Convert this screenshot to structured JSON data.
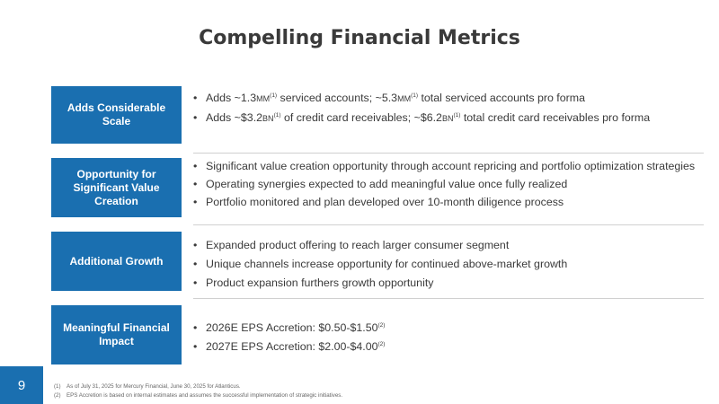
{
  "title": "Compelling Financial Metrics",
  "sections": [
    {
      "label": "Adds Considerable Scale",
      "bullets": [
        "Adds ~1.3MM(1) serviced accounts; ~5.3MM(1) total serviced accounts pro forma",
        "Adds ~$3.2BN(1) of credit card receivables; ~$6.2BN(1) total credit card receivables pro forma"
      ]
    },
    {
      "label": "Opportunity for Significant Value Creation",
      "bullets": [
        "Significant value creation opportunity through account repricing and portfolio optimization strategies",
        "Operating synergies expected to add meaningful value once fully realized",
        "Portfolio monitored and plan developed over 10-month diligence process"
      ]
    },
    {
      "label": "Additional Growth",
      "bullets": [
        "Expanded product offering to reach larger consumer segment",
        "Unique channels increase opportunity for continued above-market growth",
        "Product expansion furthers growth opportunity"
      ]
    },
    {
      "label": "Meaningful Financial Impact",
      "bullets": [
        "2026E EPS Accretion: $0.50-$1.50(2)",
        "2027E EPS Accretion: $2.00-$4.00(2)"
      ]
    }
  ],
  "page_number": "9",
  "footnotes": [
    {
      "mark": "(1)",
      "text": "As of July 31, 2025 for Mercury Financial, June 30, 2025 for Atlanticus."
    },
    {
      "mark": "(2)",
      "text": "EPS Accretion is based on internal estimates and assumes the successful implementation of strategic initiatives."
    }
  ],
  "colors": {
    "accent": "#1a6fb0",
    "text": "#3a3a3a",
    "divider": "#d0d0d0"
  }
}
